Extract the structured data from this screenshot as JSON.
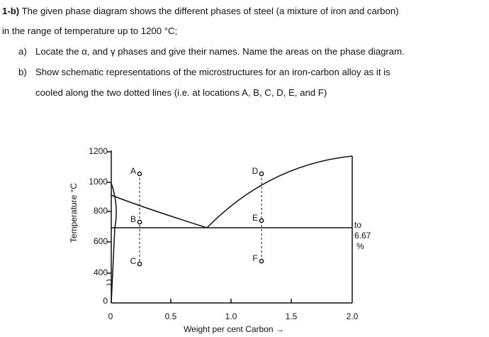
{
  "question": {
    "number": "1-b)",
    "lines": [
      "The given phase diagram shows the different phases of steel (a mixture of iron and carbon)",
      "in the range of temperature up to 1200 °C;"
    ]
  },
  "items": [
    {
      "marker": "a)",
      "lines": [
        "Locate the α, and γ phases and give their names. Name the areas on the phase diagram."
      ]
    },
    {
      "marker": "b)",
      "lines": [
        "Show schematic representations of the microstructures for an iron-carbon alloy as it is",
        "cooled along the two dotted lines (i.e. at locations A, B, C, D, E, and F)"
      ]
    }
  ],
  "figure": {
    "y_label": "Temperature °C",
    "x_label": "Weight per cent Carbon →",
    "y_ticks": [
      "1200",
      "1000",
      "800",
      "600",
      "400",
      "0"
    ],
    "x_ticks": [
      "0",
      "0.5",
      "1.0",
      "1.5",
      "2.0"
    ],
    "points": [
      "A",
      "B",
      "C",
      "D",
      "E",
      "F"
    ],
    "note": [
      "to",
      "6.67",
      "%"
    ]
  }
}
